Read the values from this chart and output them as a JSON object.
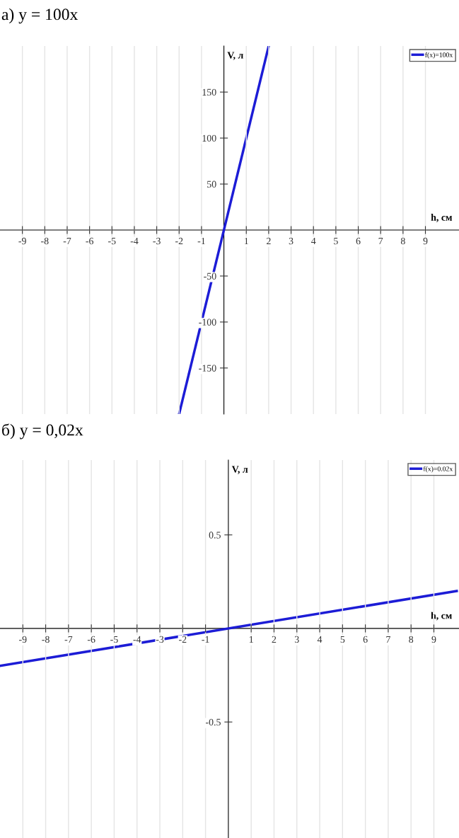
{
  "chart_data": [
    {
      "type": "line",
      "title": "а) y = 100x",
      "xlabel": "h, см",
      "ylabel": "V, л",
      "x": [
        -2,
        2
      ],
      "series": [
        {
          "name": "f(x)=100x",
          "color": "#1c1cd6",
          "values": [
            -200,
            200
          ]
        }
      ],
      "xlim": [
        -10,
        10.5
      ],
      "ylim": [
        -200,
        200
      ],
      "xticks": [
        -9,
        -8,
        -7,
        -6,
        -5,
        -4,
        -3,
        -2,
        -1,
        1,
        2,
        3,
        4,
        5,
        6,
        7,
        8,
        9
      ],
      "yticks": [
        -150,
        -100,
        -50,
        50,
        100,
        150
      ],
      "grid": "x",
      "legend": "top right",
      "marker": "none",
      "line_style": "solid"
    },
    {
      "type": "line",
      "title": "б) y = 0,02x",
      "xlabel": "h, см",
      "ylabel": "V, л",
      "x": [
        -10,
        10
      ],
      "series": [
        {
          "name": "f(x)=0.02x",
          "color": "#1c1cd6",
          "values": [
            -0.2,
            0.2
          ]
        }
      ],
      "xlim": [
        -10,
        10.1
      ],
      "ylim": [
        -1.12,
        0.9
      ],
      "xticks": [
        -9,
        -8,
        -7,
        -6,
        -5,
        -4,
        -3,
        -2,
        -1,
        1,
        2,
        3,
        4,
        5,
        6,
        7,
        8,
        9
      ],
      "yticks": [
        -0.5,
        0.5
      ],
      "grid": "x",
      "legend": "top right",
      "marker": "none",
      "line_style": "solid"
    }
  ]
}
